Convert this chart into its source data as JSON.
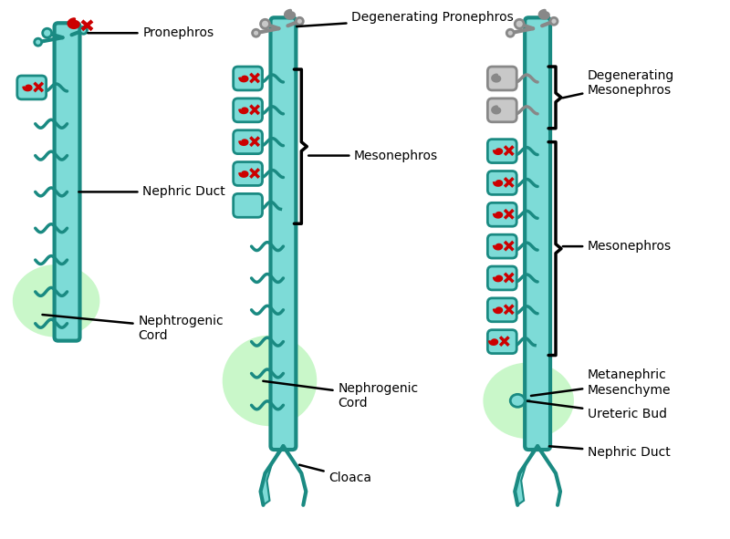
{
  "bg_color": "#ffffff",
  "teal": "#5ECFCA",
  "teal_fill": "#7DDBD7",
  "teal_stroke": "#1A8A82",
  "red": "#CC0000",
  "gray_fill": "#C8C8C8",
  "gray_stroke": "#888888",
  "green_glow": "#88EE88",
  "black": "#111111",
  "labels": {
    "pronephros": "Pronephros",
    "nephric_duct1": "Nephric Duct",
    "nephtrogenic_cord1": "Nephtrogenic\nCord",
    "deg_pronephros": "Degenerating Pronephros",
    "mesonephros_mid": "Mesonephros",
    "nephrogenic_cord2": "Nephrogenic\nCord",
    "cloaca": "Cloaca",
    "deg_mesonephros": "Degenerating\nMesonephros",
    "mesonephros_right": "Mesonephros",
    "metanephric": "Metanephric\nMesenchyme",
    "ureteric_bud": "Ureteric Bud",
    "nephric_duct3": "Nephric Duct"
  }
}
